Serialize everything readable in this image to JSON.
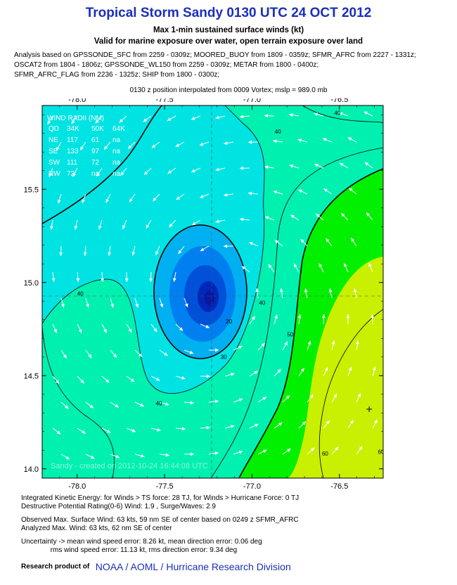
{
  "header": {
    "title": "Tropical Storm Sandy 0130 UTC 24 OCT 2012",
    "subtitle1": "Max 1-min sustained surface winds (kt)",
    "subtitle2": "Valid for marine exposure over water, open terrain exposure over land",
    "analysis_lines": [
      "Analysis based on GPSSONDE_SFC from 2259 - 0309z; MOORED_BUOY from 1809 - 0359z; SFMR_AFRC from 2227 - 1331z;",
      "OSCAT2 from 1804 - 1806z; GPSSONDE_WL150 from 2259 - 0309z; METAR from 1800 - 0400z;",
      "SFMR_AFRC_FLAG from 2236 - 1325z; SHIP from 1800 - 0300z;"
    ],
    "position_note": "0130 z position interpolated from 0009 Vortex; mslp = 989.0 mb"
  },
  "wind_radii": {
    "title": "WIND RADII (NM)",
    "header": [
      "QD",
      "34K",
      "50K",
      "64K"
    ],
    "rows": [
      [
        "NE",
        "117",
        "61",
        "na"
      ],
      [
        "SE",
        "133",
        "97",
        "na"
      ],
      [
        "SW",
        "111",
        "72",
        "na"
      ],
      [
        "NW",
        "72",
        "na",
        "na"
      ]
    ]
  },
  "watermark": "Sandy - created on 2012-10-24 16:44:08 UTC",
  "chart_data": {
    "type": "heatmap",
    "subtype": "wind speed contour map",
    "x_ticks": [
      "-78.0",
      "-77.5",
      "-77.0",
      "-76.5"
    ],
    "y_ticks": [
      "15.5",
      "15.0",
      "14.5",
      "14.0"
    ],
    "xlim": [
      -78.2,
      -76.25
    ],
    "ylim": [
      13.95,
      15.95
    ],
    "storm_center": {
      "lon": -77.17,
      "lat": 14.94
    },
    "max_wind_marker": {
      "lon": -76.33,
      "lat": 14.32
    },
    "contour_labels": [
      {
        "text": "40",
        "lon": -76.87,
        "lat": 15.8
      },
      {
        "text": "40",
        "lon": -76.53,
        "lat": 15.9
      },
      {
        "text": "40",
        "lon": -78.0,
        "lat": 14.93
      },
      {
        "text": "40",
        "lon": -77.55,
        "lat": 14.34
      },
      {
        "text": "40",
        "lon": -76.96,
        "lat": 14.88
      },
      {
        "text": "30",
        "lon": -77.18,
        "lat": 14.59
      },
      {
        "text": "20",
        "lon": -77.15,
        "lat": 14.78
      },
      {
        "text": "50",
        "lon": -76.8,
        "lat": 14.71
      },
      {
        "text": "60",
        "lon": -76.6,
        "lat": 14.07
      },
      {
        "text": "60",
        "lon": -76.28,
        "lat": 14.08
      }
    ],
    "colors": {
      "lt40": "#00e3e3",
      "40_50": "#00f0b0",
      "50_60": "#00f000",
      "ge60": "#c8f000",
      "eye1": "#00b0f0",
      "eye2": "#0080f0",
      "eye3": "#0050d8",
      "eye4": "#0028b8"
    }
  },
  "bottom": {
    "lines1": [
      "Integrated Kinetic Energy: for Winds > TS force: 28 TJ, for Winds > Hurricane Force: 0 TJ",
      "Destructive Potential Rating(0-6)  Wind: 1.9 , Surge/Waves: 2.9"
    ],
    "lines2": [
      "Observed Max. Surface Wind: 63 kts, 59 nm SE of center based on 0249 z SFMR_AFRC",
      "Analyzed Max. Wind: 63 kts, 62 nm  SE of center"
    ],
    "lines3": [
      "Uncertainty -> mean wind speed error: 8.26 kt, mean direction error: 0.06 deg",
      "               rms wind speed error: 11.13 kt, rms direction error: 9.34 deg"
    ],
    "credit_prefix": "Research product of",
    "credit_org": "NOAA  /  AOML  /  Hurricane Research Division"
  }
}
